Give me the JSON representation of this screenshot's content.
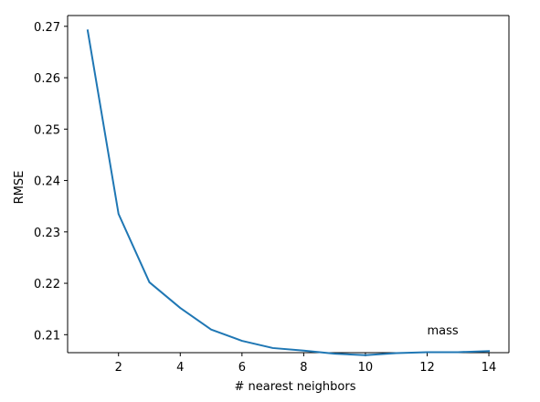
{
  "chart_data": {
    "type": "line",
    "title": "",
    "xlabel": "# nearest neighbors",
    "ylabel": "RMSE",
    "xlim": [
      0.35,
      14.65
    ],
    "ylim": [
      0.2065,
      0.2721
    ],
    "x_ticks": [
      2,
      4,
      6,
      8,
      10,
      12,
      14
    ],
    "x_tick_labels": [
      "2",
      "4",
      "6",
      "8",
      "10",
      "12",
      "14"
    ],
    "y_ticks": [
      0.21,
      0.22,
      0.23,
      0.24,
      0.25,
      0.26,
      0.27
    ],
    "y_tick_labels": [
      "0.21",
      "0.22",
      "0.23",
      "0.24",
      "0.25",
      "0.26",
      "0.27"
    ],
    "grid": false,
    "series": [
      {
        "color": "#1f77b4",
        "x": [
          1,
          2,
          3,
          4,
          5,
          6,
          7,
          8,
          9,
          10,
          11,
          12,
          13,
          14
        ],
        "y": [
          0.2692,
          0.2335,
          0.2202,
          0.2152,
          0.211,
          0.2088,
          0.2074,
          0.2069,
          0.2063,
          0.206,
          0.2064,
          0.2066,
          0.2066,
          0.2068
        ]
      }
    ],
    "annotations": [
      {
        "text": "mass",
        "x": 12.0,
        "y": 0.2101
      }
    ]
  }
}
